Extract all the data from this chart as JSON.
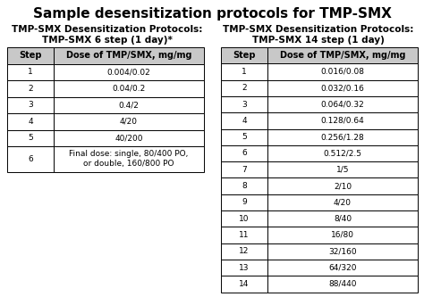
{
  "title": "Sample desensitization protocols for TMP-SMX",
  "title_fontsize": 11,
  "subtitle_left": "TMP-SMX Desensitization Protocols:\nTMP-SMX 6 step (1 day)*",
  "subtitle_right": "TMP-SMX Desensitization Protocols:\nTMP-SMX 14 step (1 day)",
  "subtitle_fontsize": 7.5,
  "table_header": [
    "Step",
    "Dose of TMP/SMX, mg/mg"
  ],
  "table6_data": [
    [
      "1",
      "0.004/0.02"
    ],
    [
      "2",
      "0.04/0.2"
    ],
    [
      "3",
      "0.4/2"
    ],
    [
      "4",
      "4/20"
    ],
    [
      "5",
      "40/200"
    ],
    [
      "6",
      "Final dose: single, 80/400 PO,\nor double, 160/800 PO"
    ]
  ],
  "table14_data": [
    [
      "1",
      "0.016/0.08"
    ],
    [
      "2",
      "0.032/0.16"
    ],
    [
      "3",
      "0.064/0.32"
    ],
    [
      "4",
      "0.128/0.64"
    ],
    [
      "5",
      "0.256/1.28"
    ],
    [
      "6",
      "0.512/2.5"
    ],
    [
      "7",
      "1/5"
    ],
    [
      "8",
      "2/10"
    ],
    [
      "9",
      "4/20"
    ],
    [
      "10",
      "8/40"
    ],
    [
      "11",
      "16/80"
    ],
    [
      "12",
      "32/160"
    ],
    [
      "13",
      "64/320"
    ],
    [
      "14",
      "88/440"
    ]
  ],
  "header_bg": "#c8c8c8",
  "row_bg": "#ffffff",
  "border_color": "#000000",
  "text_color": "#000000",
  "header_fontsize": 7.0,
  "cell_fontsize": 6.5,
  "background_color": "#ffffff"
}
